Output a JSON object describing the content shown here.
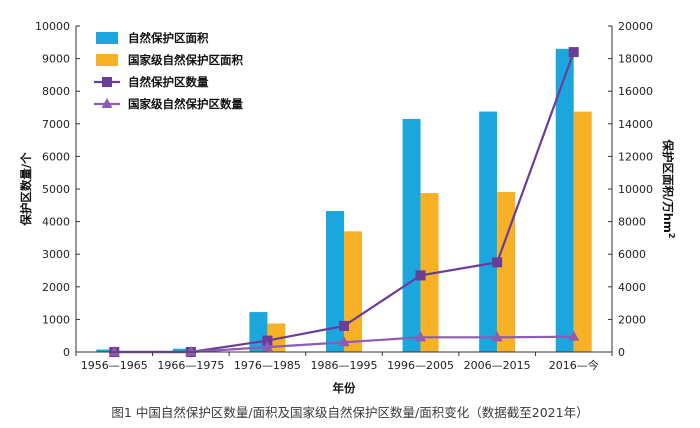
{
  "chart_data": {
    "type": "bar",
    "categories": [
      "1956—1965",
      "1966—1975",
      "1976—1985",
      "1986—1995",
      "1996—2005",
      "2006—2015",
      "2016—今"
    ],
    "xlabel": "年份",
    "ylabel_left": "保护区数量/个",
    "ylabel_right": "保护区面积/万hm²",
    "ylim_left": [
      0,
      10000
    ],
    "ylim_right": [
      0,
      20000
    ],
    "yticks_left": [
      0,
      1000,
      2000,
      3000,
      4000,
      5000,
      6000,
      7000,
      8000,
      9000,
      10000
    ],
    "yticks_right": [
      0,
      2000,
      4000,
      6000,
      8000,
      10000,
      12000,
      14000,
      16000,
      18000,
      20000
    ],
    "legend_position": "top-left",
    "grid": false,
    "series": [
      {
        "name": "自然保护区面积",
        "kind": "bar",
        "axis": "right",
        "color": "#1ba6dd",
        "values": [
          150,
          200,
          2450,
          8650,
          14300,
          14750,
          18600
        ]
      },
      {
        "name": "国家级自然保护区面积",
        "kind": "bar",
        "axis": "right",
        "color": "#f6b126",
        "values": [
          0,
          0,
          1750,
          7400,
          9750,
          9820,
          14750
        ]
      },
      {
        "name": "自然保护区数量",
        "kind": "line",
        "axis": "left",
        "color": "#6a3d9a",
        "marker": "square",
        "values": [
          0,
          0,
          350,
          800,
          2350,
          2750,
          9200
        ]
      },
      {
        "name": "国家级自然保护区数量",
        "kind": "line",
        "axis": "left",
        "color": "#8e5bb5",
        "marker": "triangle",
        "values": [
          0,
          0,
          150,
          300,
          450,
          450,
          470
        ]
      }
    ]
  },
  "caption": "图1  中国自然保护区数量/面积及国家级自然保护区数量/面积变化（数据截至2021年）"
}
